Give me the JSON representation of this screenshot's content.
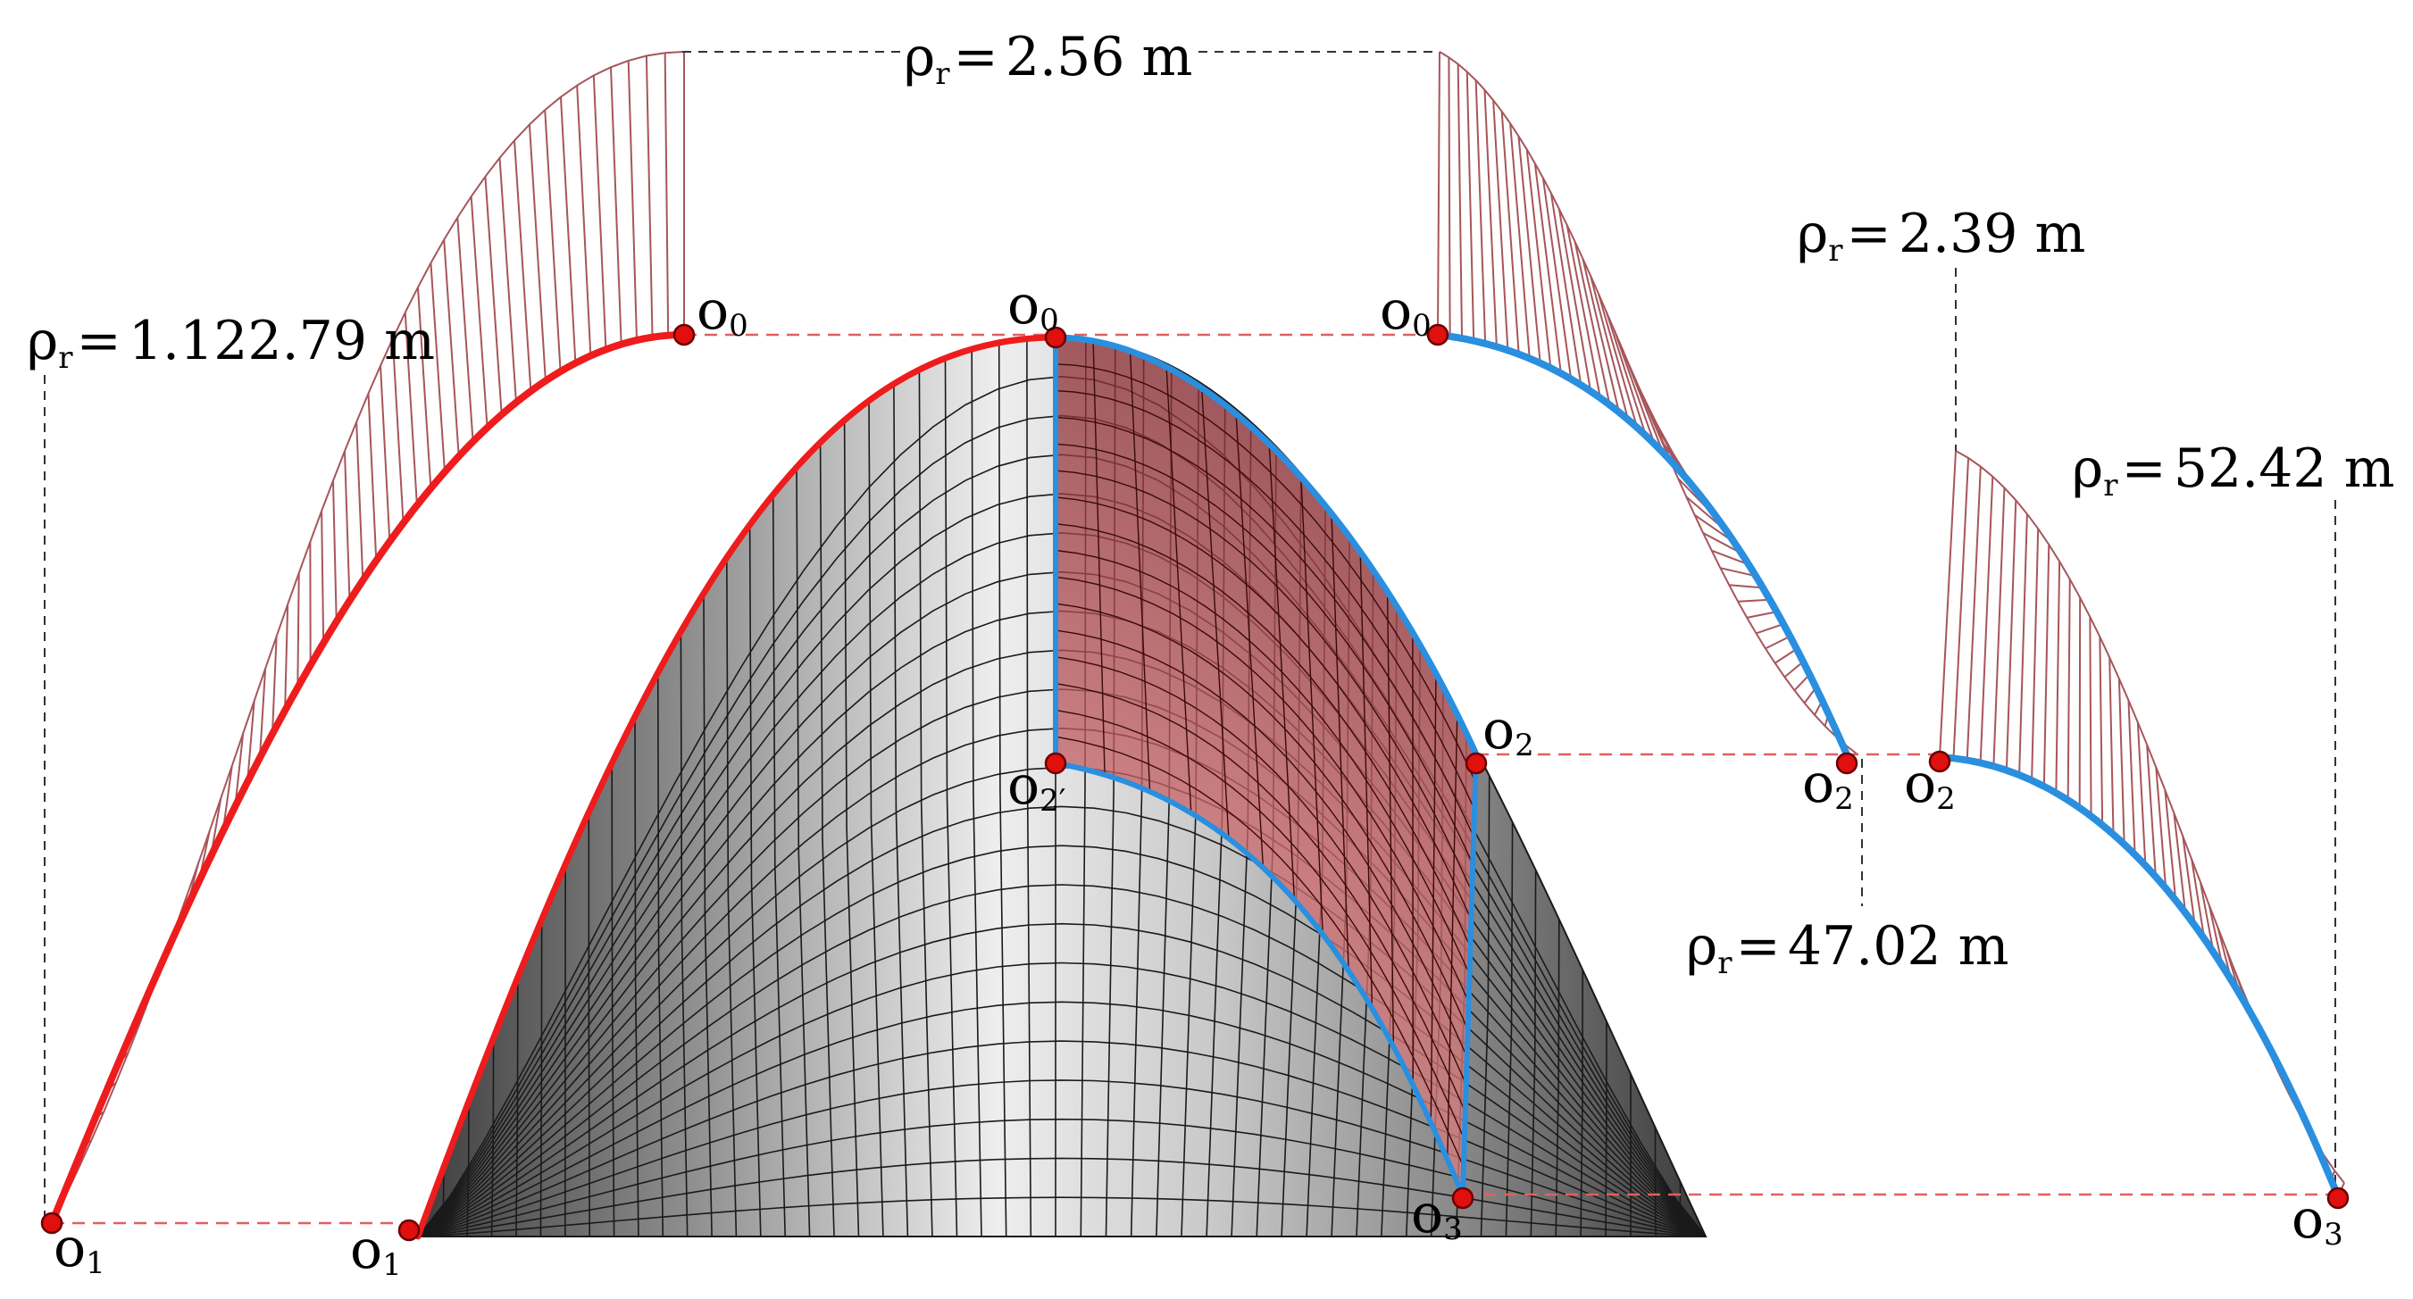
{
  "colors": {
    "red_curve": "#ee1c1c",
    "blue_curve": "#2a8fdf",
    "point_fill": "#e0100e",
    "point_stroke": "#6a0000",
    "comb": "#a6565a",
    "red_dash": "#e06060",
    "black_dash": "#333333",
    "surface_shadow": "#4a4a4a",
    "surface_light": "#e8e8e8",
    "patch": "#c9555a"
  },
  "labels": {
    "rho_top": "2.56 m",
    "rho_left": "1.122.79 m",
    "rho_right_top": "2.39 m",
    "rho_right_mid": "52.42 m",
    "rho_mid": "47.02 m",
    "rho_symbol": "ρ",
    "rho_sub": "r",
    "eq": "="
  },
  "points": {
    "o": "o",
    "sub_0": "0",
    "sub_1": "1",
    "sub_2": "2",
    "sub_2p": "2′",
    "sub_3": "3"
  },
  "icons": [
    "curvature-comb-icon",
    "control-point-icon",
    "surface-icon"
  ]
}
